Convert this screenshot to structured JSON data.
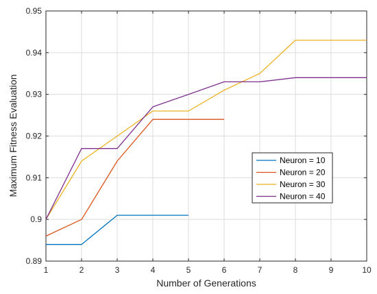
{
  "chart_data": {
    "type": "line",
    "xlabel": "Number of Generations",
    "ylabel": "Maximum Fitness Evaluation",
    "xlim": [
      1,
      10
    ],
    "ylim": [
      0.89,
      0.95
    ],
    "xticks": [
      "1",
      "2",
      "3",
      "4",
      "5",
      "6",
      "7",
      "8",
      "9",
      "10"
    ],
    "yticks": [
      "0.89",
      "0.9",
      "0.91",
      "0.92",
      "0.93",
      "0.94",
      "0.95"
    ],
    "grid": true,
    "legend_position": "right",
    "series": [
      {
        "name": "Neuron = 10",
        "color": "#0072BD",
        "x": [
          1,
          2,
          3,
          4,
          5
        ],
        "y": [
          0.894,
          0.894,
          0.901,
          0.901,
          0.901
        ]
      },
      {
        "name": "Neuron = 20",
        "color": "#D95319",
        "x": [
          1,
          2,
          3,
          4,
          5,
          6
        ],
        "y": [
          0.896,
          0.9,
          0.914,
          0.924,
          0.924,
          0.924
        ]
      },
      {
        "name": "Neuron = 30",
        "color": "#EDB120",
        "x": [
          1,
          2,
          3,
          4,
          5,
          6,
          7,
          8,
          9,
          10
        ],
        "y": [
          0.9,
          0.914,
          0.92,
          0.926,
          0.926,
          0.931,
          0.935,
          0.943,
          0.943,
          0.943
        ]
      },
      {
        "name": "Neuron = 40",
        "color": "#7E2F8E",
        "x": [
          1,
          2,
          3,
          4,
          5,
          6,
          7,
          8,
          9,
          10
        ],
        "y": [
          0.9,
          0.917,
          0.917,
          0.927,
          0.93,
          0.933,
          0.933,
          0.934,
          0.934,
          0.934
        ]
      }
    ]
  }
}
